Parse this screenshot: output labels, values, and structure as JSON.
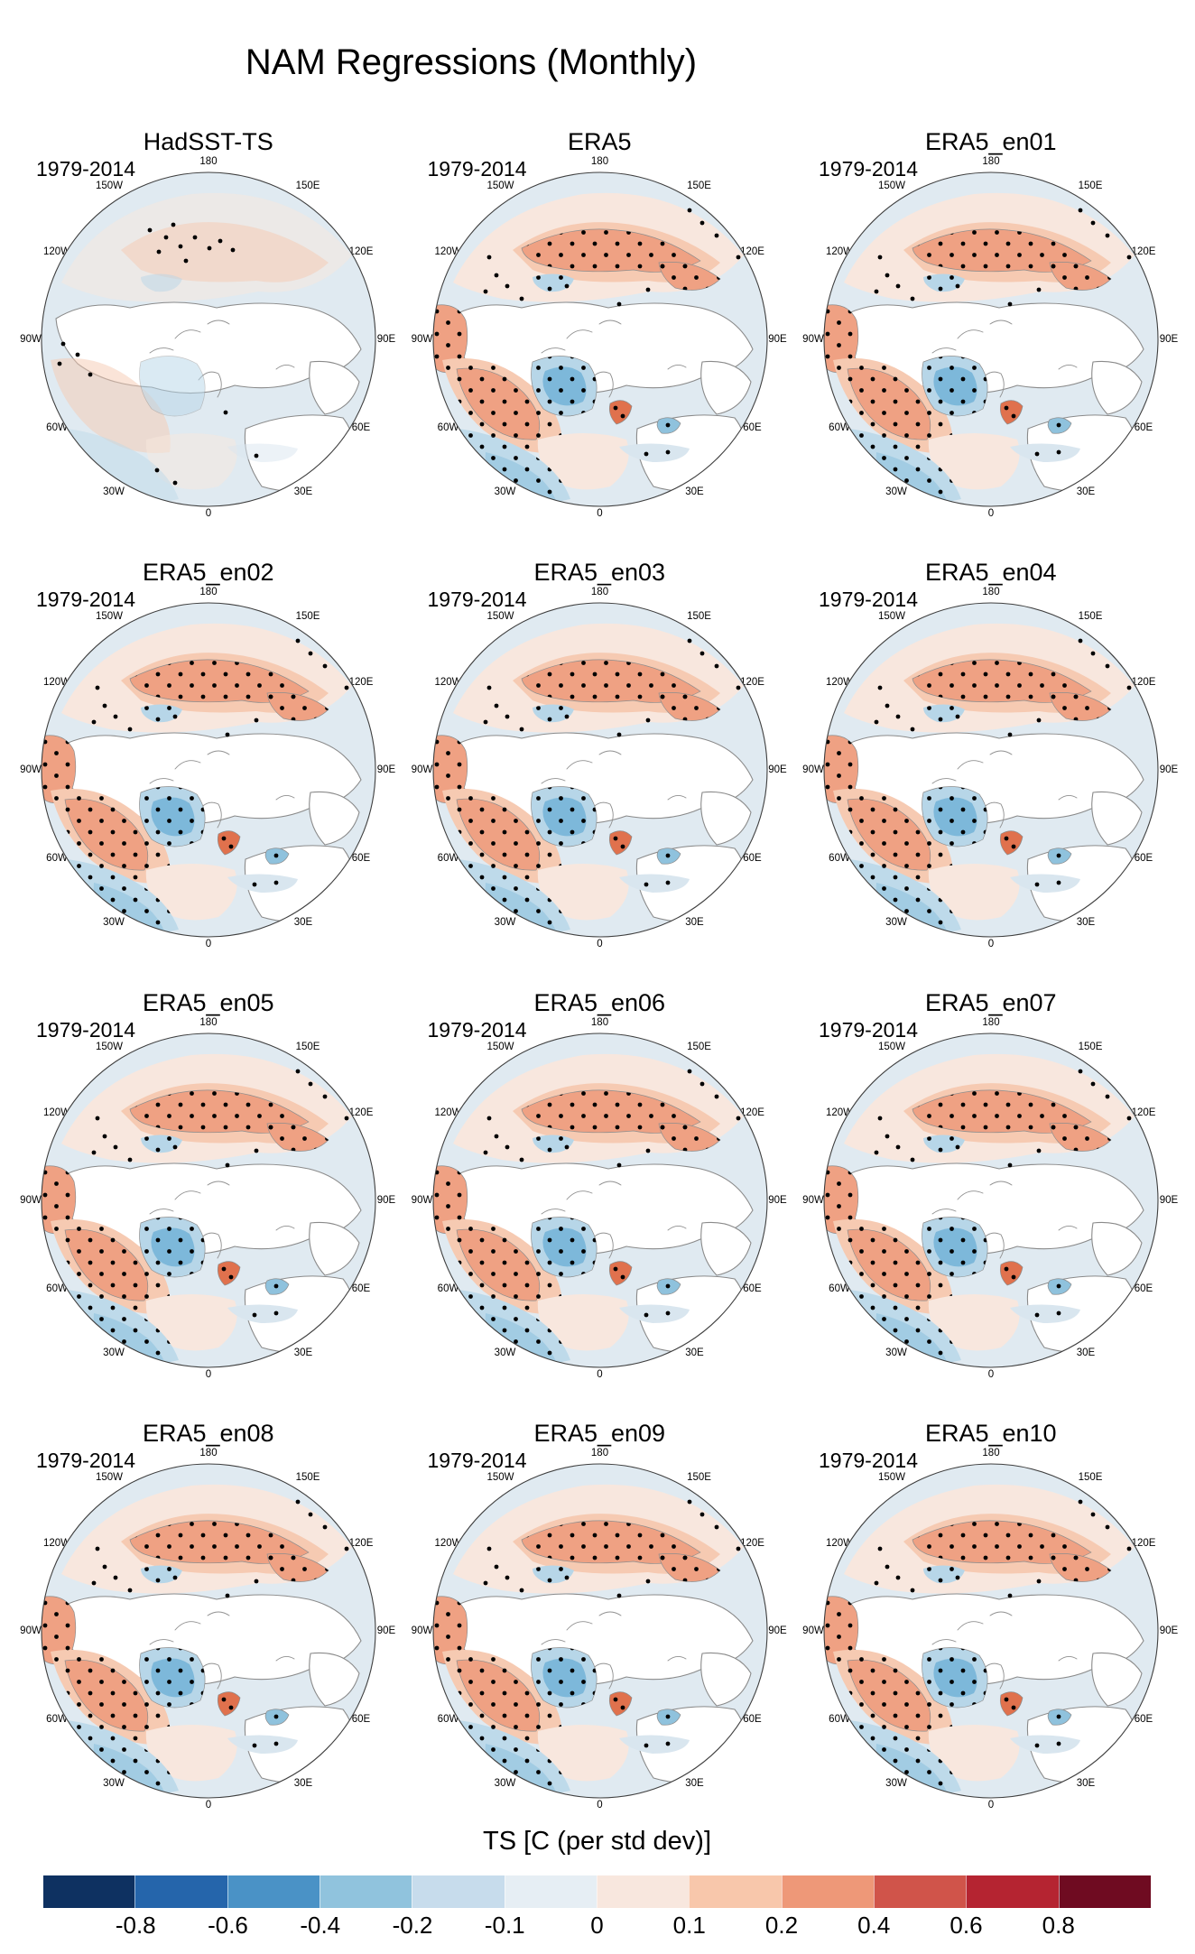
{
  "figure": {
    "title": "NAM Regressions (Monthly)"
  },
  "panel_common": {
    "period": "1979-2014",
    "ring_labels": {
      "n180": "180",
      "w150": "150W",
      "e150": "150E",
      "w120": "120W",
      "e120": "120E",
      "w90": "90W",
      "e90": "90E",
      "w60": "60W",
      "e60": "60E",
      "w30": "30W",
      "e30": "30E",
      "s0": "0"
    }
  },
  "panels": [
    {
      "title": "HadSST-TS",
      "style": "faint"
    },
    {
      "title": "ERA5",
      "style": "full"
    },
    {
      "title": "ERA5_en01",
      "style": "full"
    },
    {
      "title": "ERA5_en02",
      "style": "full"
    },
    {
      "title": "ERA5_en03",
      "style": "full"
    },
    {
      "title": "ERA5_en04",
      "style": "full"
    },
    {
      "title": "ERA5_en05",
      "style": "full"
    },
    {
      "title": "ERA5_en06",
      "style": "full"
    },
    {
      "title": "ERA5_en07",
      "style": "full"
    },
    {
      "title": "ERA5_en08",
      "style": "full"
    },
    {
      "title": "ERA5_en09",
      "style": "full"
    },
    {
      "title": "ERA5_en10",
      "style": "full"
    }
  ],
  "colorbar": {
    "title": "TS [C (per std dev)]",
    "tick_labels": [
      "-0.8",
      "-0.6",
      "-0.4",
      "-0.2",
      "-0.1",
      "0",
      "0.1",
      "0.2",
      "0.4",
      "0.6",
      "0.8"
    ],
    "colors": [
      "#0e3161",
      "#2565ab",
      "#4a92c6",
      "#90c3dd",
      "#c7dcec",
      "#e6eef4",
      "#f8e7de",
      "#f8c7ab",
      "#ee9878",
      "#d0544a",
      "#b52431",
      "#6f0b21"
    ]
  },
  "chart_data": {
    "type": "heatmap",
    "subtype": "filled-contour north-polar-stereographic maps in a 4x3 panel grid with black stipple dots over some regions",
    "title": "NAM Regressions (Monthly)",
    "panels": [
      "HadSST-TS",
      "ERA5",
      "ERA5_en01",
      "ERA5_en02",
      "ERA5_en03",
      "ERA5_en04",
      "ERA5_en05",
      "ERA5_en06",
      "ERA5_en07",
      "ERA5_en08",
      "ERA5_en09",
      "ERA5_en10"
    ],
    "period_label_on_every_panel": "1979-2014",
    "longitude_ring_labels": [
      "180",
      "150W",
      "150E",
      "120W",
      "120E",
      "90W",
      "90E",
      "60W",
      "60E",
      "30W",
      "30E",
      "0"
    ],
    "colorbar_label": "TS [C (per std dev)]",
    "contour_levels": [
      -0.8,
      -0.6,
      -0.4,
      -0.2,
      -0.1,
      0,
      0.1,
      0.2,
      0.4,
      0.6,
      0.8
    ],
    "colorbar_colors": [
      "#0e3161",
      "#2565ab",
      "#4a92c6",
      "#90c3dd",
      "#c7dcec",
      "#e6eef4",
      "#f8e7de",
      "#f8c7ab",
      "#ee9878",
      "#d0544a",
      "#b52431",
      "#6f0b21"
    ],
    "legend_position": "bottom"
  }
}
